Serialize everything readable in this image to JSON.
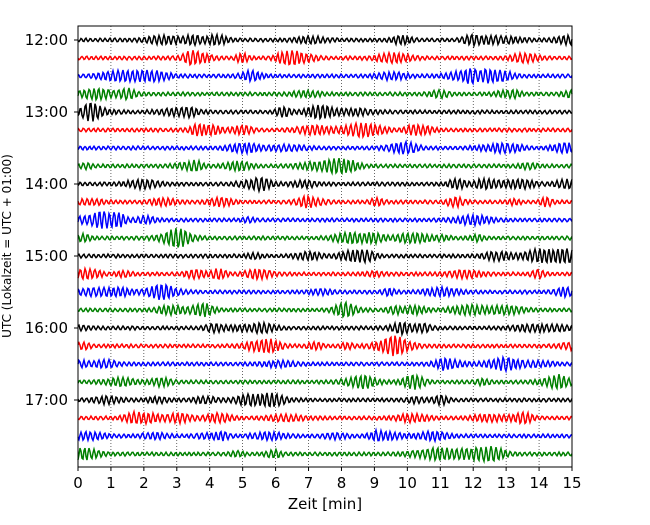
{
  "chart_data": {
    "type": "line",
    "title": "",
    "xlabel": "Zeit  [min]",
    "ylabel": "UTC (Lokalzeit = UTC + 01:00)",
    "xlim": [
      0,
      15
    ],
    "x_ticks": [
      "0",
      "1",
      "2",
      "3",
      "4",
      "5",
      "6",
      "7",
      "8",
      "9",
      "10",
      "11",
      "12",
      "13",
      "14",
      "15"
    ],
    "y_ticks": [
      "12:00",
      "13:00",
      "14:00",
      "15:00",
      "16:00",
      "17:00"
    ],
    "trace_start": "12:00",
    "trace_interval_min": 15,
    "trace_count": 24,
    "trace_colors": [
      "#000000",
      "#ff0000",
      "#0000ff",
      "#008000"
    ],
    "grid": "vertical dotted at each minute",
    "legend": "none"
  }
}
